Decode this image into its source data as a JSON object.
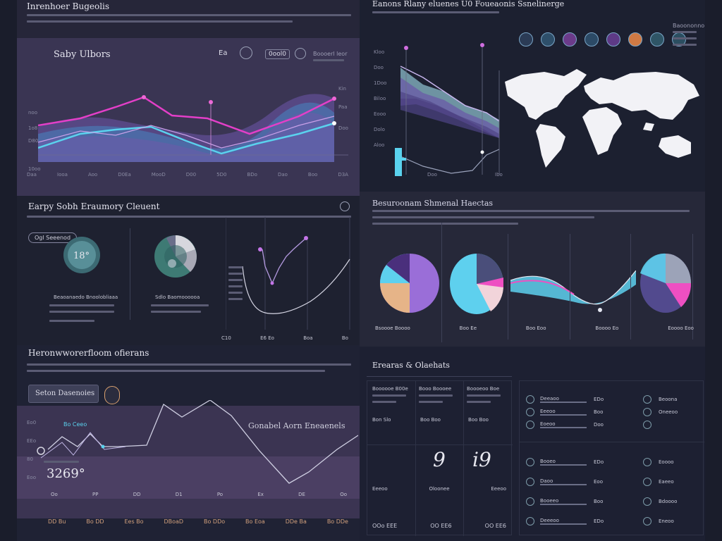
{
  "top_left": {
    "header": "Inrenhoer Bugeolis",
    "chart_title": "Saby Ulbors",
    "ctrl_a": "Ea",
    "ctrl_b": "0ool0",
    "ctrl_right": "Boooerl leor",
    "y_ticks": [
      "noo",
      "1o8",
      "D80",
      "10oo"
    ],
    "x_ticks": [
      "Daa",
      "Iooa",
      "Aoo",
      "D0Ea",
      "MooD",
      "D00",
      "5D0",
      "BDo",
      "Dao",
      "Boo",
      "D3A"
    ],
    "right_ticks": [
      "Kin",
      "Paa",
      "Doo"
    ]
  },
  "top_right": {
    "header": "Eanons Rlany eluenes U0 Foueaonis Ssnelinerge",
    "left_ticks": [
      "Kloo",
      "Doo",
      "1Doo",
      "Biloo",
      "Eooo",
      "Dolo",
      "Aloo"
    ],
    "x_ticks": [
      "Doo",
      "Ibo"
    ],
    "icon_caption": "Baoononno",
    "icon_colors": [
      "#2b3b55",
      "#2e4f6a",
      "#6b3b8a",
      "#2c4a66",
      "#5e3a86",
      "#d07a44",
      "#2f5566",
      "#2b4e60"
    ]
  },
  "mid_left": {
    "title": "Earpy Sobh Eraumory Cleuent",
    "gauge_value": "18°",
    "pill": "Ogl Seeenod",
    "gauge_caption": "Beaoanaedo Bnoolobliaaa",
    "donut_caption": "Sdlo Baomoooooa",
    "x_ticks": [
      "C10",
      "E6 Eo",
      "Boa",
      "Bo"
    ]
  },
  "mid_right": {
    "title": "Besuroonam Shmenal Haectas",
    "captions": [
      "Bsoooe Boooo",
      "Boo Ee",
      "Boo Eoo",
      "Boooo Eo",
      "Eoooo Eoo"
    ]
  },
  "bottom_left": {
    "title": "Heronwworerfloom ofierans",
    "search": "Seton Dasenoies",
    "value": "3269°",
    "inner_title": "Gonabel Aorn Eneaenels",
    "tag": "Bo Ceeo",
    "left_ticks": [
      "Eo0",
      "EEo",
      "80",
      "Eoo"
    ],
    "x_ticks": [
      "Oo",
      "PP",
      "DD",
      "D1",
      "Po",
      "Ex",
      "DE",
      "Oo"
    ],
    "footer": [
      "DD Bu",
      "Bo DD",
      "Ees Bo",
      "DBoaD",
      "Bo DDo",
      "Bo Eoa",
      "DDe Ba",
      "Bo DDe"
    ]
  },
  "bottom_right": {
    "title": "Erearas & Olaehats",
    "cols": [
      "Boooooe B00e",
      "Booo Boooee",
      "Boooeoo Boe"
    ],
    "digits": [
      "9",
      "i9"
    ],
    "labels": [
      "Eeeoo",
      "Oloonee",
      "Eeeoo"
    ],
    "values": [
      "OOo EEE",
      "OO EE6",
      "OO EE6"
    ],
    "list_a": [
      [
        "Deeaoo",
        "EDo",
        "Beoona"
      ],
      [
        "Eeeoo",
        "Boo",
        "Oneeoo"
      ],
      [
        "Eoeoo",
        "Doo",
        ""
      ]
    ],
    "list_b": [
      [
        "Booeo",
        "EDo",
        "Eoooo"
      ],
      [
        "Daoo",
        "Eoo",
        "Eaeeo"
      ],
      [
        "Booeeo",
        "Boo",
        "Bdoooo"
      ],
      [
        "Deeeoo",
        "EDo",
        "Eneoo"
      ]
    ]
  }
}
